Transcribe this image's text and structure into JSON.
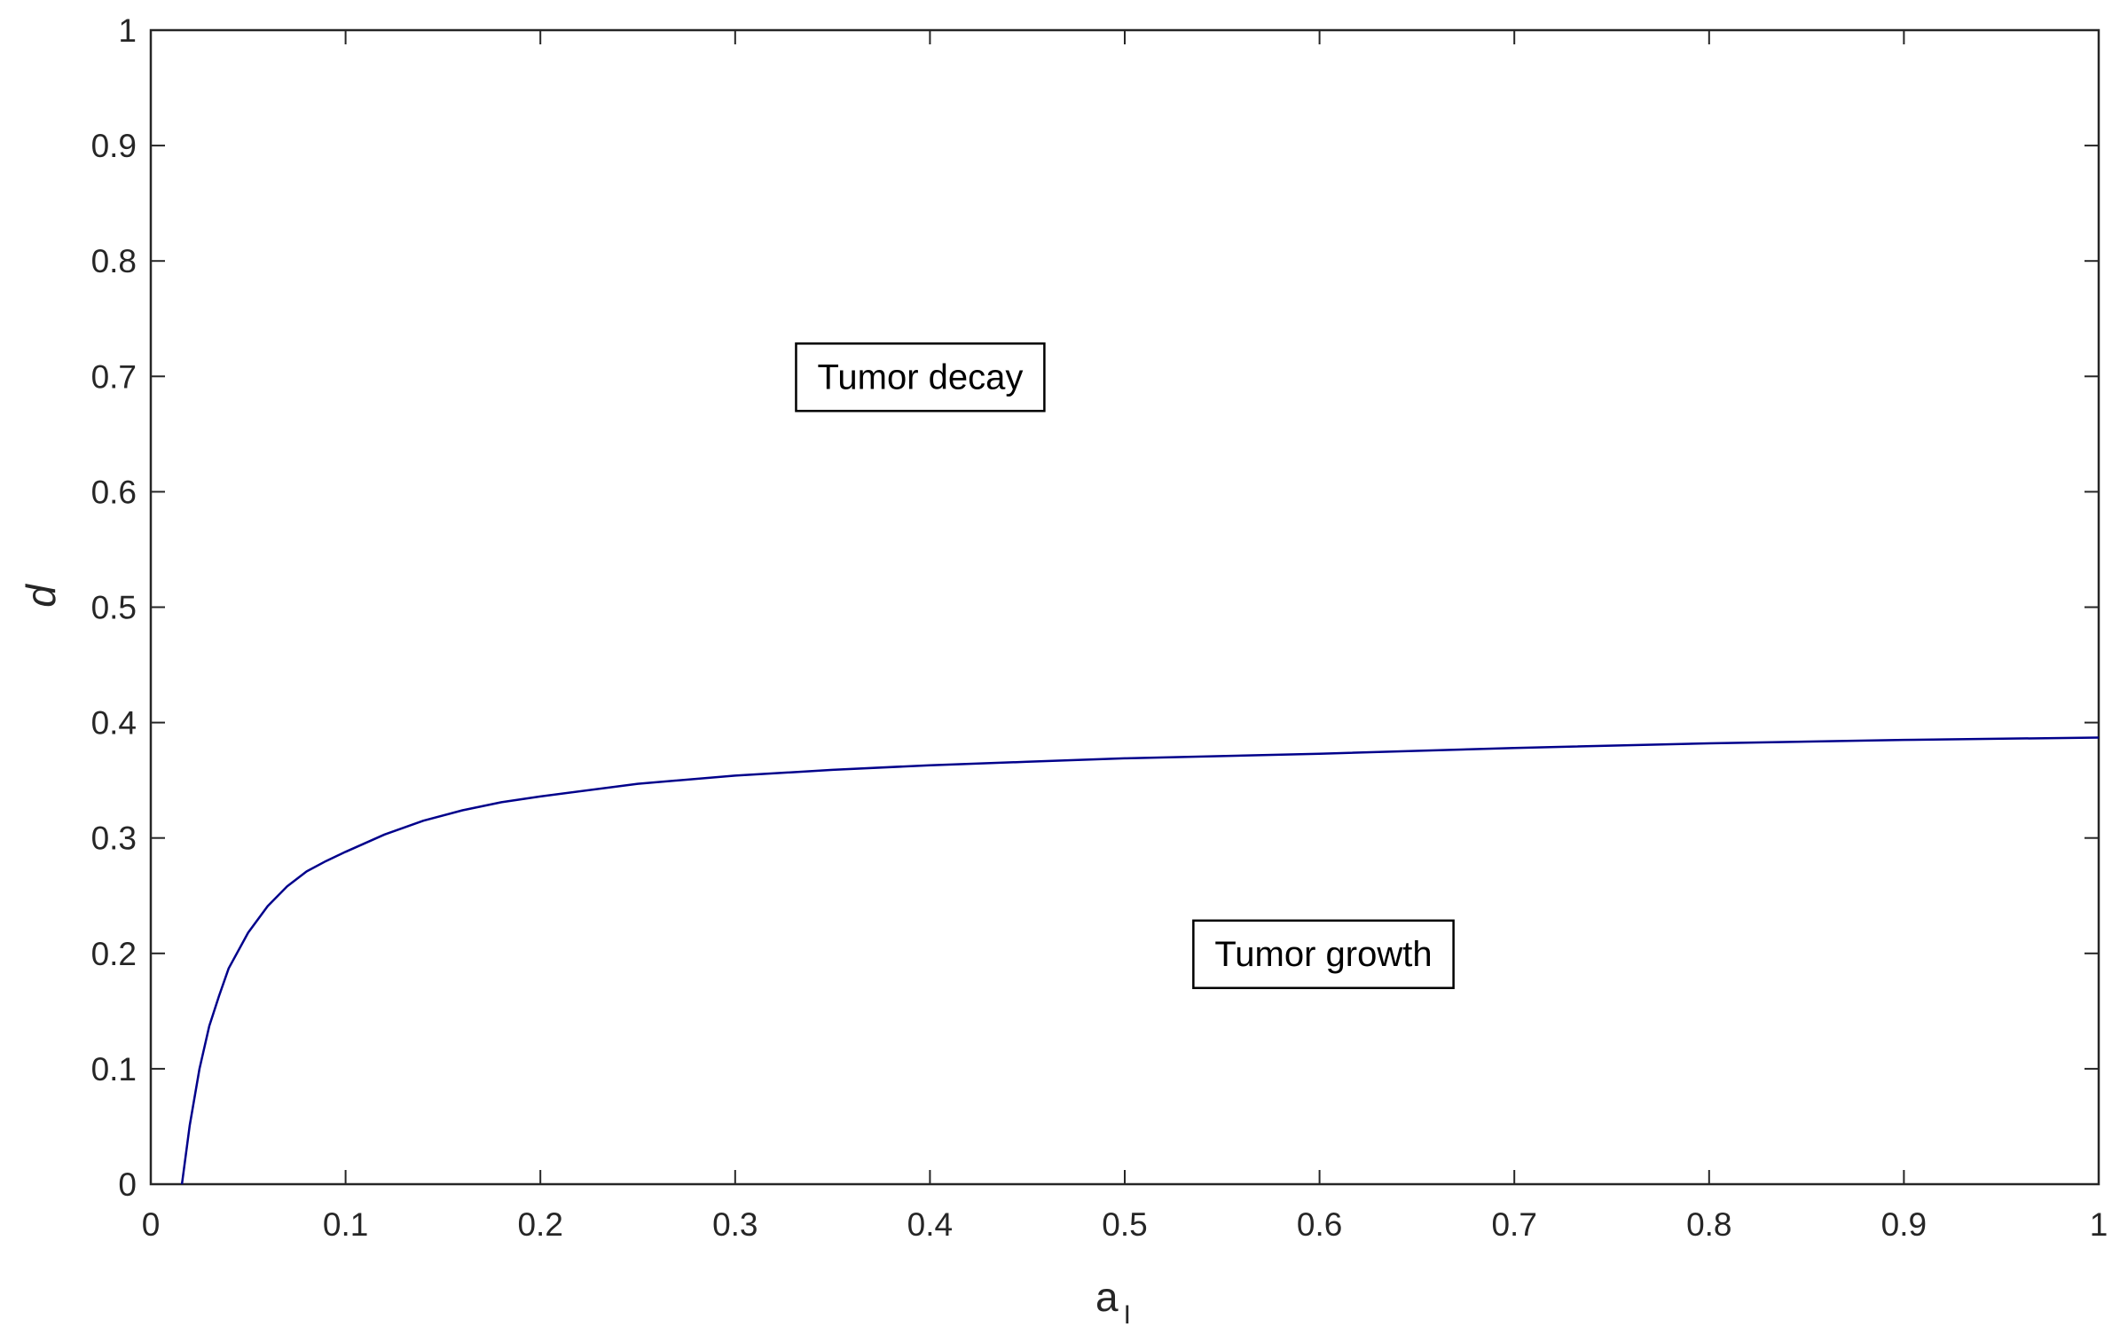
{
  "chart_data": {
    "type": "line",
    "title": "",
    "xlabel": "a",
    "xlabel_subscript": "I",
    "ylabel": "d",
    "xlim": [
      0,
      1
    ],
    "ylim": [
      0,
      1
    ],
    "x_ticks": [
      "0",
      "0.1",
      "0.2",
      "0.3",
      "0.4",
      "0.5",
      "0.6",
      "0.7",
      "0.8",
      "0.9",
      "1"
    ],
    "y_ticks": [
      "0",
      "0.1",
      "0.2",
      "0.3",
      "0.4",
      "0.5",
      "0.6",
      "0.7",
      "0.8",
      "0.9",
      "1"
    ],
    "grid": false,
    "line_color": "#00008B",
    "series": [
      {
        "x": [
          0.016,
          0.02,
          0.025,
          0.03,
          0.035,
          0.04,
          0.05,
          0.06,
          0.07,
          0.08,
          0.09,
          0.1,
          0.12,
          0.14,
          0.16,
          0.18,
          0.2,
          0.25,
          0.3,
          0.35,
          0.4,
          0.45,
          0.5,
          0.6,
          0.7,
          0.8,
          0.9,
          1.0
        ],
        "y": [
          0.0,
          0.051,
          0.1,
          0.137,
          0.163,
          0.187,
          0.218,
          0.241,
          0.258,
          0.271,
          0.28,
          0.288,
          0.303,
          0.315,
          0.324,
          0.331,
          0.336,
          0.347,
          0.354,
          0.359,
          0.363,
          0.366,
          0.369,
          0.373,
          0.378,
          0.382,
          0.385,
          0.387
        ]
      }
    ],
    "annotations": [
      {
        "text": "Tumor decay",
        "x": 0.395,
        "y": 0.7
      },
      {
        "text": "Tumor growth",
        "x": 0.602,
        "y": 0.2
      }
    ]
  }
}
